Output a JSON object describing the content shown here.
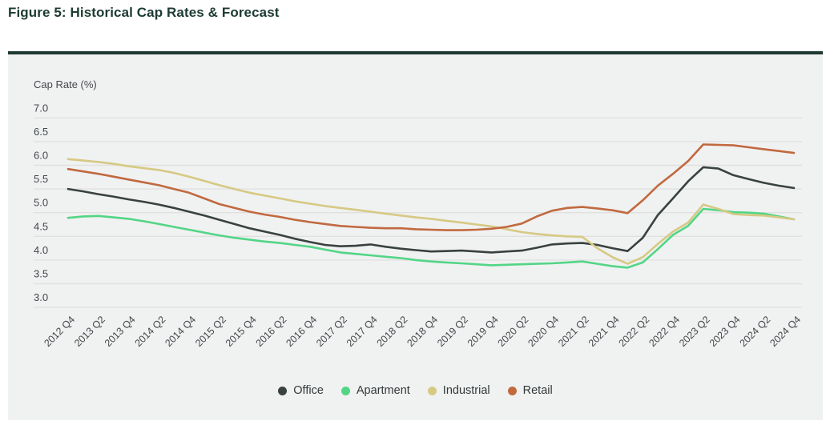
{
  "figure": {
    "title": "Figure 5: Historical Cap Rates & Forecast"
  },
  "chart_data": {
    "type": "line",
    "y_axis_title": "Cap Rate (%)",
    "ylim": [
      3.0,
      7.0
    ],
    "y_ticks": [
      "7.0",
      "6.5",
      "6.0",
      "5.5",
      "5.0",
      "4.5",
      "4.0",
      "3.5",
      "3.0"
    ],
    "x_unit": "quarter",
    "x_label_every": 2,
    "x_tick_labels": [
      "2012 Q4",
      "2013 Q2",
      "2013 Q4",
      "2014 Q2",
      "2014 Q4",
      "2015 Q2",
      "2015 Q4",
      "2016 Q2",
      "2016 Q4",
      "2017 Q2",
      "2017 Q4",
      "2018 Q2",
      "2018 Q4",
      "2019 Q2",
      "2019 Q4",
      "2020 Q2",
      "2020 Q4",
      "2021 Q2",
      "2021 Q4",
      "2022 Q2",
      "2022 Q4",
      "2023 Q2",
      "2023 Q4",
      "2024 Q2",
      "2024 Q4"
    ],
    "grid": "horizontal",
    "legend_position": "bottom-center",
    "panel_background": "#f0f1f1",
    "gridline_color": "#e0e1df",
    "series": [
      {
        "name": "Office",
        "color": "#38423e",
        "values": [
          5.5,
          5.45,
          5.39,
          5.34,
          5.28,
          5.23,
          5.17,
          5.1,
          5.02,
          4.94,
          4.85,
          4.76,
          4.67,
          4.6,
          4.53,
          4.45,
          4.38,
          4.32,
          4.29,
          4.3,
          4.33,
          4.28,
          4.24,
          4.21,
          4.18,
          4.19,
          4.2,
          4.18,
          4.16,
          4.18,
          4.2,
          4.26,
          4.33,
          4.35,
          4.36,
          4.32,
          4.25,
          4.19,
          4.47,
          4.95,
          5.3,
          5.66,
          5.96,
          5.93,
          5.79,
          5.71,
          5.63,
          5.57,
          5.52
        ]
      },
      {
        "name": "Apartment",
        "color": "#53d586",
        "values": [
          4.89,
          4.92,
          4.93,
          4.9,
          4.87,
          4.82,
          4.76,
          4.7,
          4.64,
          4.58,
          4.52,
          4.47,
          4.43,
          4.39,
          4.36,
          4.32,
          4.28,
          4.22,
          4.16,
          4.13,
          4.1,
          4.07,
          4.04,
          4.0,
          3.97,
          3.95,
          3.93,
          3.91,
          3.89,
          3.9,
          3.91,
          3.92,
          3.93,
          3.95,
          3.97,
          3.92,
          3.87,
          3.84,
          3.95,
          4.23,
          4.53,
          4.72,
          5.08,
          5.05,
          5.01,
          5.0,
          4.98,
          4.92,
          4.86
        ]
      },
      {
        "name": "Industrial",
        "color": "#d6c983",
        "values": [
          6.13,
          6.1,
          6.07,
          6.03,
          5.98,
          5.94,
          5.9,
          5.84,
          5.76,
          5.67,
          5.58,
          5.5,
          5.42,
          5.36,
          5.3,
          5.24,
          5.19,
          5.14,
          5.1,
          5.06,
          5.02,
          4.98,
          4.94,
          4.9,
          4.87,
          4.83,
          4.79,
          4.75,
          4.71,
          4.65,
          4.59,
          4.55,
          4.52,
          4.5,
          4.49,
          4.25,
          4.06,
          3.92,
          4.06,
          4.34,
          4.6,
          4.79,
          5.17,
          5.08,
          4.97,
          4.95,
          4.94,
          4.9,
          4.86
        ]
      },
      {
        "name": "Retail",
        "color": "#c1693f",
        "values": [
          5.92,
          5.87,
          5.82,
          5.76,
          5.7,
          5.64,
          5.58,
          5.5,
          5.42,
          5.3,
          5.18,
          5.1,
          5.02,
          4.96,
          4.91,
          4.85,
          4.8,
          4.76,
          4.72,
          4.7,
          4.68,
          4.67,
          4.67,
          4.65,
          4.64,
          4.63,
          4.63,
          4.64,
          4.66,
          4.7,
          4.77,
          4.92,
          5.04,
          5.1,
          5.12,
          5.09,
          5.05,
          4.99,
          5.26,
          5.57,
          5.82,
          6.09,
          6.44,
          6.43,
          6.42,
          6.38,
          6.34,
          6.3,
          6.26
        ]
      }
    ]
  }
}
